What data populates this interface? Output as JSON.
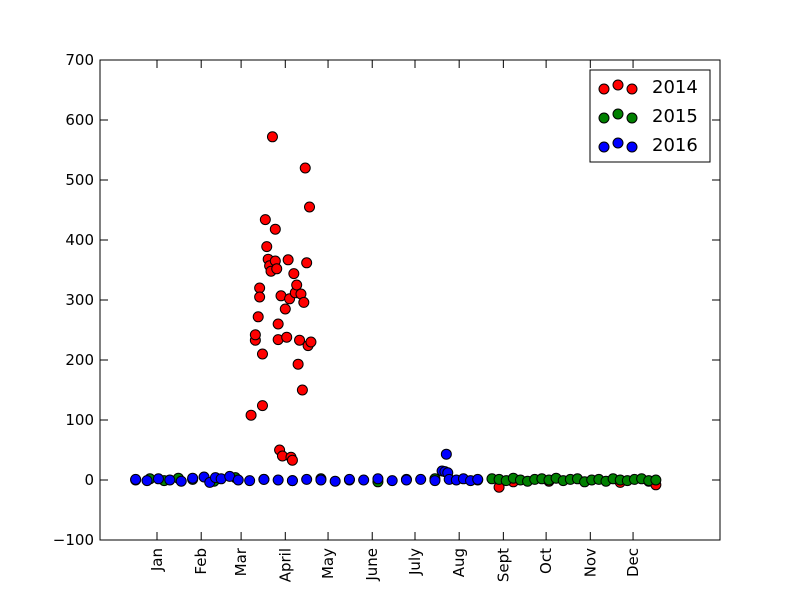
{
  "chart_data": {
    "type": "scatter",
    "title": "",
    "xlabel": "",
    "ylabel": "",
    "ylim": [
      -100,
      700
    ],
    "y_ticks": [
      -100,
      0,
      100,
      200,
      300,
      400,
      500,
      600,
      700
    ],
    "x_domain_days": [
      -25,
      410
    ],
    "x_ticks": [
      {
        "label": "Jan",
        "day": 15
      },
      {
        "label": "Feb",
        "day": 46
      },
      {
        "label": "Mar",
        "day": 74
      },
      {
        "label": "April",
        "day": 105
      },
      {
        "label": "May",
        "day": 135
      },
      {
        "label": "June",
        "day": 166
      },
      {
        "label": "July",
        "day": 196
      },
      {
        "label": "Aug",
        "day": 227
      },
      {
        "label": "Sept",
        "day": 258
      },
      {
        "label": "Oct",
        "day": 288
      },
      {
        "label": "Nov",
        "day": 319
      },
      {
        "label": "Dec",
        "day": 349
      }
    ],
    "grid": false,
    "legend_position": "top-right",
    "series": [
      {
        "name": "2014",
        "color": "#ff0000",
        "note_range": [
          0,
          365
        ],
        "points": [
          [
            81,
            108
          ],
          [
            84,
            233
          ],
          [
            84,
            242
          ],
          [
            86,
            272
          ],
          [
            87,
            320
          ],
          [
            87,
            305
          ],
          [
            89,
            124
          ],
          [
            89,
            210
          ],
          [
            91,
            434
          ],
          [
            92,
            389
          ],
          [
            93,
            368
          ],
          [
            94,
            357
          ],
          [
            95,
            348
          ],
          [
            96,
            572
          ],
          [
            98,
            418
          ],
          [
            98,
            365
          ],
          [
            99,
            352
          ],
          [
            100,
            234
          ],
          [
            100,
            260
          ],
          [
            101,
            50
          ],
          [
            102,
            307
          ],
          [
            103,
            40
          ],
          [
            105,
            285
          ],
          [
            106,
            238
          ],
          [
            107,
            367
          ],
          [
            108,
            302
          ],
          [
            109,
            38
          ],
          [
            110,
            33
          ],
          [
            111,
            344
          ],
          [
            112,
            312
          ],
          [
            113,
            325
          ],
          [
            114,
            193
          ],
          [
            115,
            233
          ],
          [
            116,
            310
          ],
          [
            117,
            150
          ],
          [
            118,
            296
          ],
          [
            119,
            520
          ],
          [
            120,
            362
          ],
          [
            121,
            224
          ],
          [
            122,
            455
          ],
          [
            123,
            230
          ],
          [
            255,
            -12
          ],
          [
            265,
            -3
          ],
          [
            290,
            -2
          ],
          [
            340,
            -4
          ],
          [
            360,
            -2
          ],
          [
            365,
            -8
          ]
        ]
      },
      {
        "name": "2015",
        "color": "#008000",
        "points": [
          [
            0,
            0
          ],
          [
            10,
            2
          ],
          [
            20,
            -1
          ],
          [
            30,
            3
          ],
          [
            40,
            1
          ],
          [
            55,
            -2
          ],
          [
            70,
            4
          ],
          [
            90,
            1
          ],
          [
            110,
            -1
          ],
          [
            130,
            2
          ],
          [
            150,
            0
          ],
          [
            170,
            -3
          ],
          [
            190,
            1
          ],
          [
            210,
            2
          ],
          [
            240,
            0
          ],
          [
            250,
            2
          ],
          [
            255,
            1
          ],
          [
            260,
            -1
          ],
          [
            265,
            3
          ],
          [
            270,
            0
          ],
          [
            275,
            -2
          ],
          [
            280,
            1
          ],
          [
            285,
            2
          ],
          [
            290,
            0
          ],
          [
            295,
            3
          ],
          [
            300,
            -1
          ],
          [
            305,
            1
          ],
          [
            310,
            2
          ],
          [
            315,
            -3
          ],
          [
            320,
            0
          ],
          [
            325,
            1
          ],
          [
            330,
            -2
          ],
          [
            335,
            2
          ],
          [
            340,
            0
          ],
          [
            345,
            -1
          ],
          [
            350,
            1
          ],
          [
            355,
            2
          ],
          [
            360,
            -1
          ],
          [
            365,
            0
          ]
        ]
      },
      {
        "name": "2016",
        "color": "#0000ff",
        "points": [
          [
            0,
            1
          ],
          [
            8,
            -1
          ],
          [
            16,
            2
          ],
          [
            24,
            0
          ],
          [
            32,
            -2
          ],
          [
            40,
            3
          ],
          [
            48,
            5
          ],
          [
            52,
            -4
          ],
          [
            56,
            4
          ],
          [
            60,
            2
          ],
          [
            66,
            6
          ],
          [
            72,
            0
          ],
          [
            80,
            -1
          ],
          [
            90,
            1
          ],
          [
            100,
            0
          ],
          [
            110,
            -1
          ],
          [
            120,
            1
          ],
          [
            130,
            0
          ],
          [
            140,
            -2
          ],
          [
            150,
            1
          ],
          [
            160,
            0
          ],
          [
            170,
            2
          ],
          [
            180,
            -1
          ],
          [
            190,
            0
          ],
          [
            200,
            1
          ],
          [
            210,
            -1
          ],
          [
            215,
            15
          ],
          [
            217,
            14
          ],
          [
            218,
            43
          ],
          [
            219,
            12
          ],
          [
            220,
            1
          ],
          [
            225,
            0
          ],
          [
            230,
            2
          ],
          [
            235,
            -1
          ],
          [
            240,
            1
          ]
        ]
      }
    ]
  },
  "legend": {
    "entries": [
      "2014",
      "2015",
      "2016"
    ]
  }
}
